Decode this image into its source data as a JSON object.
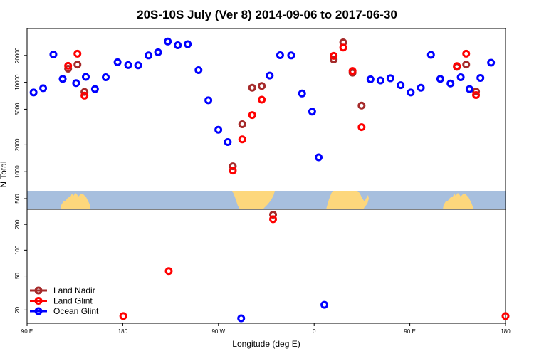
{
  "chart_data": {
    "type": "scatter",
    "title": "20S-10S July (Ver 8)   2014-09-06 to 2017-06-30",
    "xlabel": "Longitude (deg E)",
    "ylabel": "N Total",
    "xlim": [
      90,
      450
    ],
    "x_ticks": [
      {
        "value": 90,
        "label": "90 E"
      },
      {
        "value": 162,
        "label": "180"
      },
      {
        "value": 234,
        "label": "90 W"
      },
      {
        "value": 306,
        "label": "0"
      },
      {
        "value": 378,
        "label": "90 E"
      },
      {
        "value": 450,
        "label": "180"
      }
    ],
    "top_panel": {
      "scale": "log",
      "ylim": [
        380,
        40000
      ],
      "y_ticks": [
        {
          "value": 500,
          "label": "500"
        },
        {
          "value": 1000,
          "label": "1000"
        },
        {
          "value": 2000,
          "label": "2000"
        },
        {
          "value": 5000,
          "label": "5000"
        },
        {
          "value": 10000,
          "label": "10000"
        },
        {
          "value": 20000,
          "label": "20000"
        }
      ]
    },
    "bottom_panel": {
      "scale": "log",
      "ylim": [
        14,
        300
      ],
      "y_ticks": [
        {
          "value": 20,
          "label": "20"
        },
        {
          "value": 50,
          "label": "50"
        },
        {
          "value": 100,
          "label": "100"
        },
        {
          "value": 200,
          "label": "200"
        }
      ]
    },
    "legend_position": "bottom-left",
    "series": [
      {
        "name": "Land Nadir",
        "color": "#a52a2a",
        "top_points": [
          [
            120.9,
            14200
          ],
          [
            127.9,
            15800
          ],
          [
            133.2,
            7800
          ],
          [
            244.8,
            1150
          ],
          [
            251.9,
            3400
          ],
          [
            259.4,
            8700
          ],
          [
            266.6,
            9100
          ],
          [
            320.7,
            18000
          ],
          [
            327.9,
            28000
          ],
          [
            334.9,
            12800
          ],
          [
            341.7,
            5500
          ],
          [
            413.4,
            14900
          ],
          [
            420.4,
            15800
          ],
          [
            427.8,
            7900
          ]
        ],
        "bottom_points": [
          [
            275.1,
            260
          ]
        ]
      },
      {
        "name": "Land Glint",
        "color": "#ff0000",
        "top_points": [
          [
            120.9,
            15300
          ],
          [
            127.9,
            20900
          ],
          [
            133.2,
            7100
          ],
          [
            244.8,
            1030
          ],
          [
            251.9,
            2300
          ],
          [
            259.4,
            4300
          ],
          [
            266.6,
            6400
          ],
          [
            320.7,
            19800
          ],
          [
            327.9,
            24500
          ],
          [
            334.9,
            13400
          ],
          [
            341.7,
            3150
          ],
          [
            413.4,
            15200
          ],
          [
            420.4,
            20900
          ],
          [
            427.8,
            7200
          ]
        ],
        "bottom_points": [
          [
            162.4,
            17
          ],
          [
            196.6,
            57
          ],
          [
            275.1,
            230
          ],
          [
            450,
            17
          ]
        ]
      },
      {
        "name": "Ocean Glint",
        "color": "#0000ff",
        "top_points": [
          [
            94.9,
            7700
          ],
          [
            102.1,
            8600
          ],
          [
            109.8,
            20500
          ],
          [
            116.8,
            10900
          ],
          [
            126.9,
            9800
          ],
          [
            134.2,
            11500
          ],
          [
            141.1,
            8400
          ],
          [
            149.2,
            11400
          ],
          [
            158.1,
            16800
          ],
          [
            166.1,
            15600
          ],
          [
            173.6,
            15500
          ],
          [
            181.4,
            20000
          ],
          [
            188.6,
            21700
          ],
          [
            195.9,
            28600
          ],
          [
            203.4,
            26000
          ],
          [
            210.9,
            26700
          ],
          [
            219.0,
            13700
          ],
          [
            226.4,
            6300
          ],
          [
            233.9,
            2950
          ],
          [
            241.0,
            2150
          ],
          [
            272.6,
            11900
          ],
          [
            280.4,
            20100
          ],
          [
            288.7,
            20000
          ],
          [
            296.9,
            7500
          ],
          [
            304.5,
            4700
          ],
          [
            309.4,
            1450
          ],
          [
            348.4,
            10800
          ],
          [
            355.9,
            10500
          ],
          [
            363.4,
            11100
          ],
          [
            371.1,
            9300
          ],
          [
            378.7,
            7700
          ],
          [
            386.3,
            8700
          ],
          [
            393.9,
            20300
          ],
          [
            400.9,
            10900
          ],
          [
            408.6,
            9700
          ],
          [
            416.3,
            11400
          ],
          [
            422.9,
            8400
          ],
          [
            431.1,
            11200
          ],
          [
            439.1,
            16600
          ]
        ],
        "bottom_points": [
          [
            251.1,
            16
          ],
          [
            313.7,
            23
          ]
        ]
      }
    ]
  }
}
